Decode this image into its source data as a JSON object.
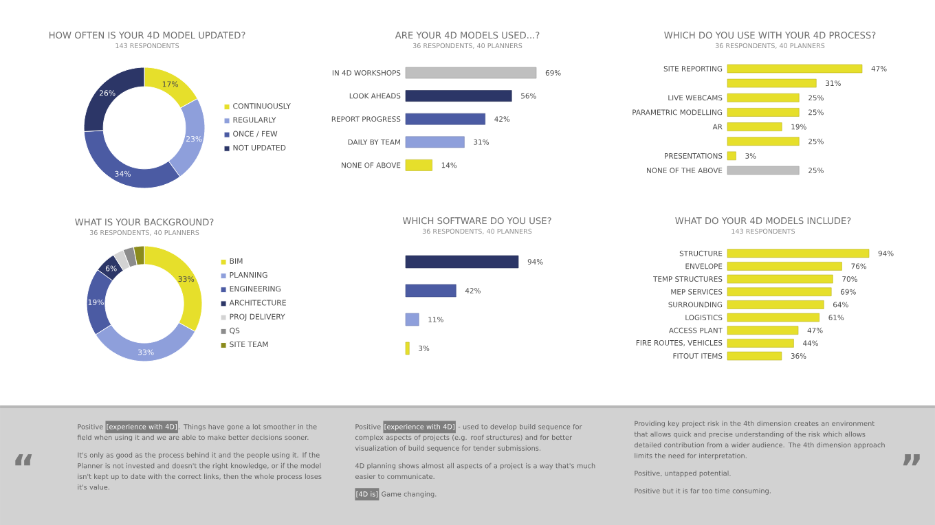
{
  "chart_data": [
    {
      "type": "donut",
      "title": "HOW OFTEN IS YOUR 4D MODEL UPDATED?",
      "subtitle": "143 RESPONDENTS",
      "categories": [
        "CONTINUOUSLY",
        "REGULARLY",
        "ONCE / FEW",
        "NOT UPDATED"
      ],
      "values": [
        17,
        23,
        34,
        26
      ],
      "colors": [
        "#e6df2b",
        "#8e9fdb",
        "#4b5ba3",
        "#2c3667"
      ],
      "value_labels": [
        "17%",
        "23%",
        "34%",
        "26%"
      ],
      "legend": "right"
    },
    {
      "type": "bar",
      "orientation": "horizontal",
      "title": "ARE YOUR 4D MODELS USED...?",
      "subtitle": "36 RESPONDENTS, 40 PLANNERS",
      "categories": [
        "IN 4D WORKSHOPS",
        "LOOK AHEADS",
        "REPORT PROGRESS",
        "DAILY BY TEAM",
        "NONE OF ABOVE"
      ],
      "values": [
        69,
        56,
        42,
        31,
        14
      ],
      "colors": [
        "#bfbfbf",
        "#2c3667",
        "#4b5ba3",
        "#8e9fdb",
        "#e6df2b"
      ],
      "value_labels": [
        "69%",
        "56%",
        "42%",
        "31%",
        "14%"
      ]
    },
    {
      "type": "bar",
      "orientation": "horizontal",
      "title": "WHICH DO YOU USE WITH YOUR 4D PROCESS?",
      "subtitle": "36 RESPONDENTS, 40 PLANNERS",
      "categories": [
        "SITE REPORTING",
        null,
        "LIVE WEBCAMS",
        "PARAMETRIC MODELLING",
        "AR",
        null,
        "PRESENTATIONS",
        "NONE OF THE ABOVE"
      ],
      "values": [
        47,
        31,
        25,
        25,
        19,
        25,
        3,
        25
      ],
      "colors": [
        "#e6df2b",
        "#e6df2b",
        "#e6df2b",
        "#e6df2b",
        "#e6df2b",
        "#e6df2b",
        "#e6df2b",
        "#bfbfbf"
      ],
      "value_labels": [
        "47%",
        "31%",
        "25%",
        "25%",
        "19%",
        "25%",
        "3%",
        "25%"
      ]
    },
    {
      "type": "donut",
      "title": "WHAT IS YOUR BACKGROUND?",
      "subtitle": "36 RESPONDENTS, 40 PLANNERS",
      "categories": [
        "BIM",
        "PLANNING",
        "ENGINEERING",
        "ARCHITECTURE",
        "PROJ DELIVERY",
        "QS",
        "SITE TEAM"
      ],
      "values": [
        33,
        33,
        19,
        6,
        3,
        3,
        3
      ],
      "colors": [
        "#e6df2b",
        "#8e9fdb",
        "#4b5ba3",
        "#2c3667",
        "#d3d3d3",
        "#8c8c8c",
        "#8b8b1c"
      ],
      "value_labels": [
        "33%",
        "33%",
        "19%",
        "6%",
        null,
        null,
        null
      ],
      "legend": "right"
    },
    {
      "type": "bar",
      "orientation": "horizontal",
      "title": "WHICH SOFTWARE DO YOU USE?",
      "subtitle": "36 RESPONDENTS, 40 PLANNERS",
      "categories": [
        null,
        null,
        null,
        null
      ],
      "values": [
        94,
        42,
        11,
        3
      ],
      "colors": [
        "#2c3667",
        "#4b5ba3",
        "#8e9fdb",
        "#e6df2b"
      ],
      "value_labels": [
        "94%",
        "42%",
        "11%",
        "3%"
      ]
    },
    {
      "type": "bar",
      "orientation": "horizontal",
      "title": "WHAT DO YOUR 4D MODELS INCLUDE?",
      "subtitle": "143 RESPONDENTS",
      "categories": [
        "STRUCTURE",
        "ENVELOPE",
        "TEMP STRUCTURES",
        "MEP SERVICES",
        "SURROUNDING",
        "LOGISTICS",
        "ACCESS PLANT",
        "FIRE ROUTES, VEHICLES",
        "FITOUT ITEMS"
      ],
      "values": [
        94,
        76,
        70,
        69,
        64,
        61,
        47,
        44,
        36
      ],
      "colors": [
        "#e6df2b",
        "#e6df2b",
        "#e6df2b",
        "#e6df2b",
        "#e6df2b",
        "#e6df2b",
        "#e6df2b",
        "#e6df2b",
        "#e6df2b"
      ],
      "value_labels": [
        "94%",
        "76%",
        "70%",
        "69%",
        "64%",
        "61%",
        "47%",
        "44%",
        "36%"
      ]
    },
    {
      "type": "other",
      "annotations": [
        "“",
        "Positive",
        "[experience with 4D]",
        ". Things have gone a lot smoother in the field when using it and we are able to make better decisions sooner.",
        "It's only as good as the process behind it and the people using it. If the Planner is not invested and doesn't the right knowledge, or if the model isn't kept up to date with the correct links, then the whole process loses it's value.",
        "Positive",
        "[experience with 4D]",
        "- used to develop build sequence for complex aspects of projects (e.g. roof structures) and for better visualization of build sequence for tender submissions.",
        "4D planning shows almost all aspects of a project is a way that's much easier to communicate.",
        "[4D is]",
        "Game changing.",
        "Providing key project risk in the 4th dimension creates an environment that allows quick and precise understanding of the risk which allows detailed contribution from a wider audience. The 4th dimension approach limits the need for interpretation.",
        "Positive, untapped potential.",
        "Positive but it is far too time consuming.",
        "”"
      ]
    }
  ]
}
